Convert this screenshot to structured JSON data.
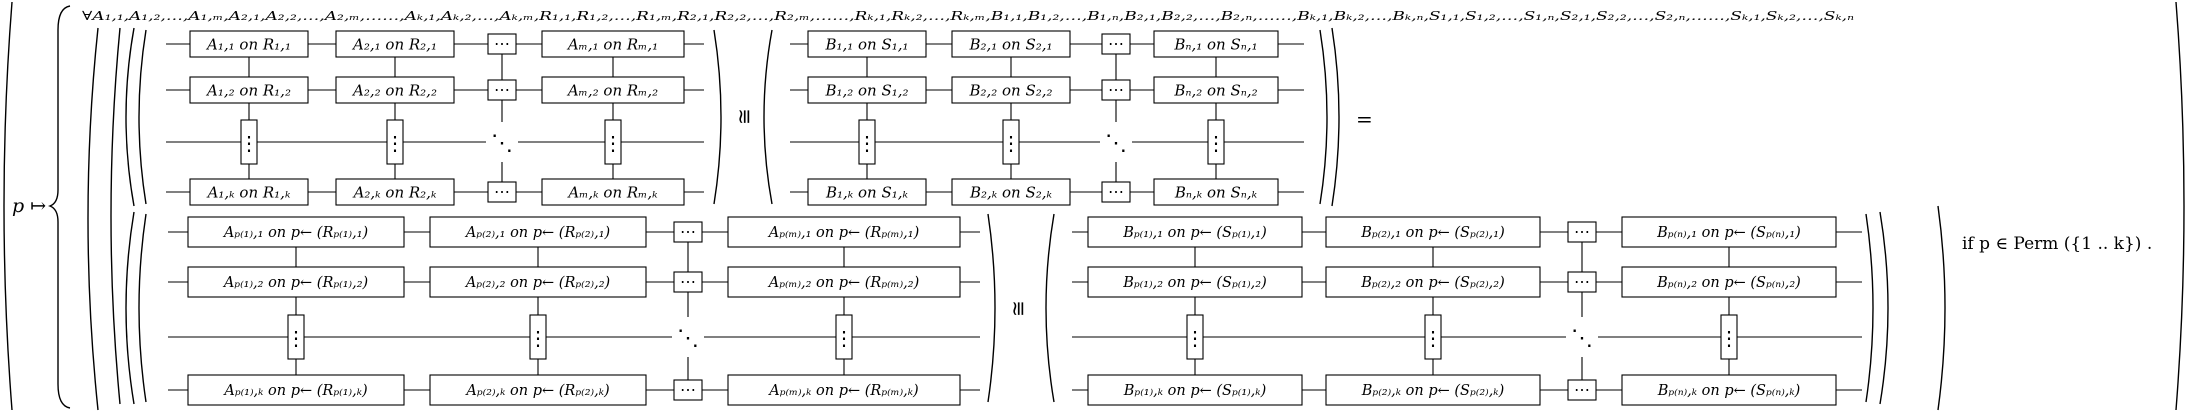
{
  "formula": {
    "lhs_var": "p ↦",
    "quantifier": "∀A₁,₁,A₁,₂,…,A₁,ₘ,A₂,₁,A₂,₂,…,A₂,ₘ,……,Aₖ,₁,Aₖ,₂,…,Aₖ,ₘ,R₁,₁,R₁,₂,…,R₁,ₘ,R₂,₁,R₂,₂,…,R₂,ₘ,……,Rₖ,₁,Rₖ,₂,…,Rₖ,ₘ,B₁,₁,B₁,₂,…,B₁,ₙ,B₂,₁,B₂,₂,…,B₂,ₙ,……,Bₖ,₁,Bₖ,₂,…,Bₖ,ₙ,S₁,₁,S₁,₂,…,S₁,ₙ,S₂,₁,S₂,₂,…,S₂,ₙ,……,Sₖ,₁,Sₖ,₂,…,Sₖ,ₙ",
    "iso_symbol": "≅",
    "eq_symbol": "=",
    "condition": "if p ∈ Perm ({1 .. k}) .",
    "ellipsis_h": "⋯",
    "ellipsis_v": "⋮",
    "ellipsis_d": "⋱",
    "top_left_grid": [
      [
        "A₁,₁ on R₁,₁",
        "A₂,₁ on R₂,₁",
        "Aₘ,₁ on Rₘ,₁"
      ],
      [
        "A₁,₂ on R₁,₂",
        "A₂,₂ on R₂,₂",
        "Aₘ,₂ on Rₘ,₂"
      ],
      [
        "A₁,ₖ on R₁,ₖ",
        "A₂,ₖ on R₂,ₖ",
        "Aₘ,ₖ on Rₘ,ₖ"
      ]
    ],
    "top_right_grid": [
      [
        "B₁,₁ on S₁,₁",
        "B₂,₁ on S₂,₁",
        "Bₙ,₁ on Sₙ,₁"
      ],
      [
        "B₁,₂ on S₁,₂",
        "B₂,₂ on S₂,₂",
        "Bₙ,₂ on Sₙ,₂"
      ],
      [
        "B₁,ₖ on S₁,ₖ",
        "B₂,ₖ on S₂,ₖ",
        "Bₙ,ₖ on Sₙ,ₖ"
      ]
    ],
    "bottom_left_grid": [
      [
        "Aₚ₍₁₎,₁ on p← (Rₚ₍₁₎,₁)",
        "Aₚ₍₂₎,₁ on p← (Rₚ₍₂₎,₁)",
        "Aₚ₍ₘ₎,₁ on p← (Rₚ₍ₘ₎,₁)"
      ],
      [
        "Aₚ₍₁₎,₂ on p← (Rₚ₍₁₎,₂)",
        "Aₚ₍₂₎,₂ on p← (Rₚ₍₂₎,₂)",
        "Aₚ₍ₘ₎,₂ on p← (Rₚ₍ₘ₎,₂)"
      ],
      [
        "Aₚ₍₁₎,ₖ on p← (Rₚ₍₁₎,ₖ)",
        "Aₚ₍₂₎,ₖ on p← (Rₚ₍₂₎,ₖ)",
        "Aₚ₍ₘ₎,ₖ on p← (Rₚ₍ₘ₎,ₖ)"
      ]
    ],
    "bottom_right_grid": [
      [
        "Bₚ₍₁₎,₁ on p← (Sₚ₍₁₎,₁)",
        "Bₚ₍₂₎,₁ on p← (Sₚ₍₂₎,₁)",
        "Bₚ₍ₙ₎,₁ on p← (Sₚ₍ₙ₎,₁)"
      ],
      [
        "Bₚ₍₁₎,₂ on p← (Sₚ₍₁₎,₂)",
        "Bₚ₍₂₎,₂ on p← (Sₚ₍₂₎,₂)",
        "Bₚ₍ₙ₎,₂ on p← (Sₚ₍ₙ₎,₂)"
      ],
      [
        "Bₚ₍₁₎,ₖ on p← (Sₚ₍₁₎,ₖ)",
        "Bₚ₍₂₎,ₖ on p← (Sₚ₍₂₎,ₖ)",
        "Bₚ₍ₙ₎,ₖ on p← (Sₚ₍ₙ₎,ₖ)"
      ]
    ]
  }
}
